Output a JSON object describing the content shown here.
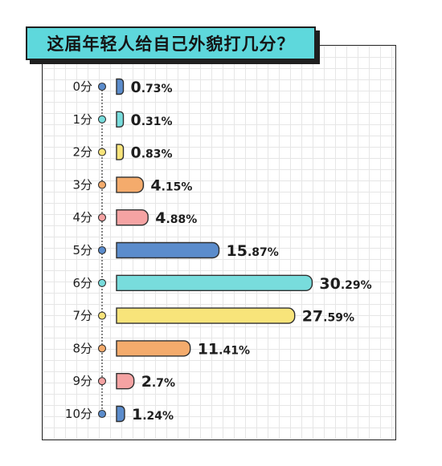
{
  "colors": {
    "title_bg": "#5ed8dc",
    "outline": "#2f2f2f",
    "palette": [
      "#5b8ccc",
      "#78dcdc",
      "#f8e47a",
      "#f4ab6c",
      "#f5a3a3"
    ]
  },
  "chart_data": {
    "type": "bar",
    "orientation": "horizontal",
    "title": "这届年轻人给自己外貌打几分？",
    "xlabel": "",
    "ylabel": "",
    "xlim": [
      0,
      32
    ],
    "grid": true,
    "value_suffix": "%",
    "categories": [
      "0分",
      "1分",
      "2分",
      "3分",
      "4分",
      "5分",
      "6分",
      "7分",
      "8分",
      "9分",
      "10分"
    ],
    "values": [
      0.73,
      0.31,
      0.83,
      4.15,
      4.88,
      15.87,
      30.29,
      27.59,
      11.41,
      2.7,
      1.24
    ],
    "value_labels": [
      {
        "int": "0",
        "dec": ".73%"
      },
      {
        "int": "0",
        "dec": ".31%"
      },
      {
        "int": "0",
        "dec": ".83%"
      },
      {
        "int": "4",
        "dec": ".15%"
      },
      {
        "int": "4",
        "dec": ".88%"
      },
      {
        "int": "15",
        "dec": ".87%"
      },
      {
        "int": "30",
        "dec": ".29%"
      },
      {
        "int": "27",
        "dec": ".59%"
      },
      {
        "int": "11",
        "dec": ".41%"
      },
      {
        "int": "2",
        "dec": ".7%"
      },
      {
        "int": "1",
        "dec": ".24%"
      }
    ]
  }
}
